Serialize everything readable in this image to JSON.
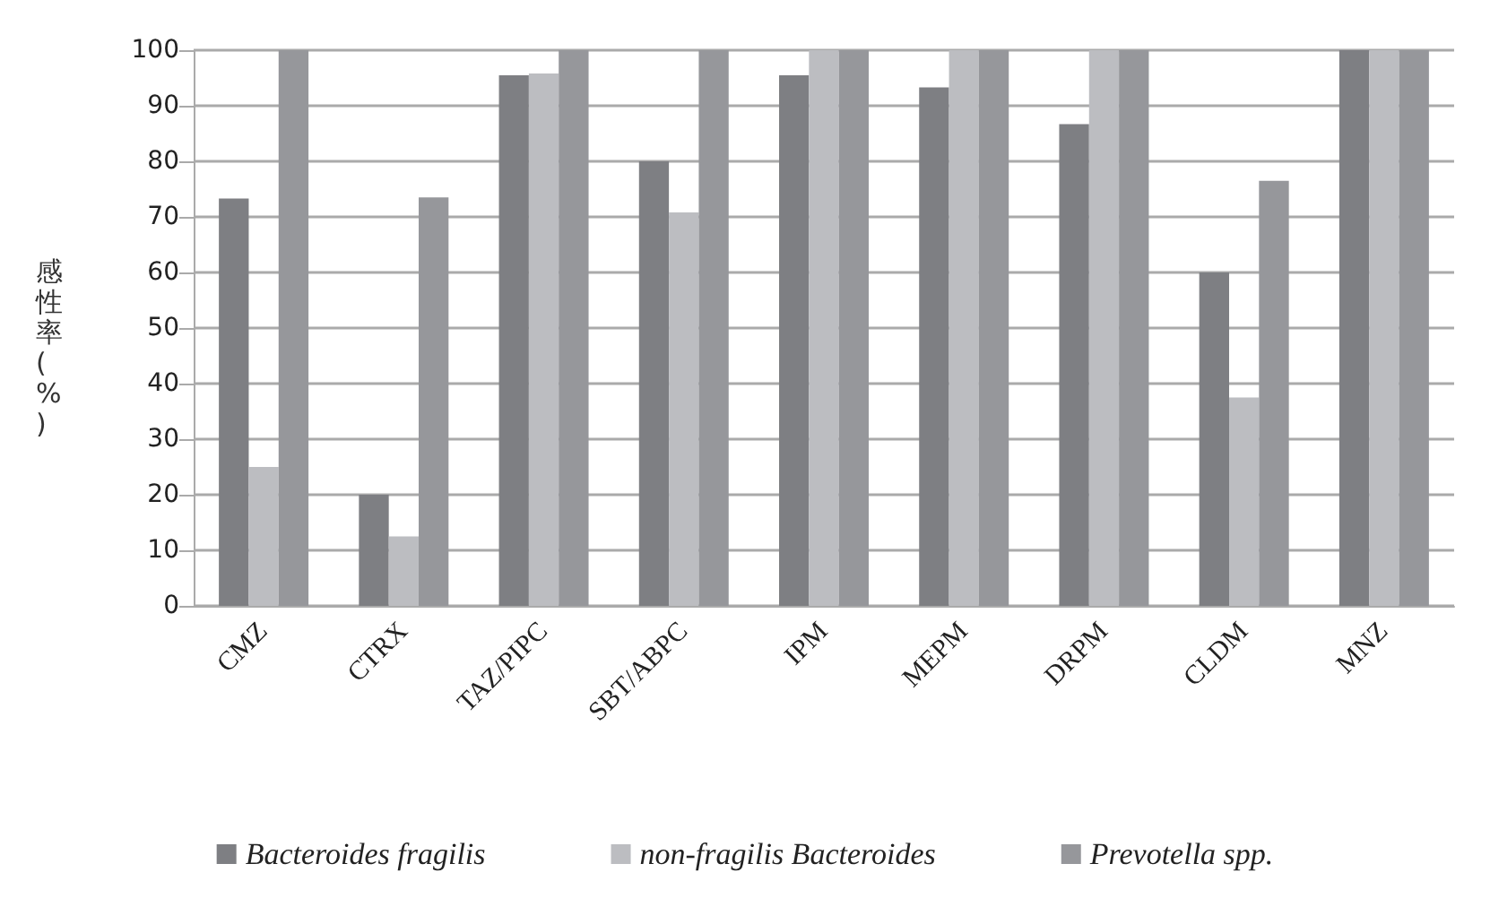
{
  "chart_data": {
    "type": "bar",
    "ylabel": "感性率(%)",
    "categories": [
      "CMZ",
      "CTRX",
      "TAZ/PIPC",
      "SBT/ABPC",
      "IPM",
      "MEPM",
      "DRPM",
      "CLDM",
      "MNZ"
    ],
    "series": [
      {
        "name": "Bacteroides fragilis",
        "color": "#7e7f83",
        "values": [
          73.3,
          20,
          95.5,
          80,
          95.5,
          93.3,
          86.7,
          60,
          100
        ]
      },
      {
        "name": "non-fragilis Bacteroides",
        "color": "#bcbdc1",
        "values": [
          25,
          12.5,
          95.8,
          70.8,
          100,
          100,
          100,
          37.5,
          100
        ]
      },
      {
        "name": "Prevotella spp.",
        "color": "#96979b",
        "values": [
          100,
          73.5,
          100,
          100,
          100,
          100,
          100,
          76.5,
          100
        ]
      }
    ],
    "ylim": [
      0,
      100
    ],
    "yticks": [
      0,
      10,
      20,
      30,
      40,
      50,
      60,
      70,
      80,
      90,
      100
    ],
    "grid": "y",
    "legend": "bottom"
  }
}
